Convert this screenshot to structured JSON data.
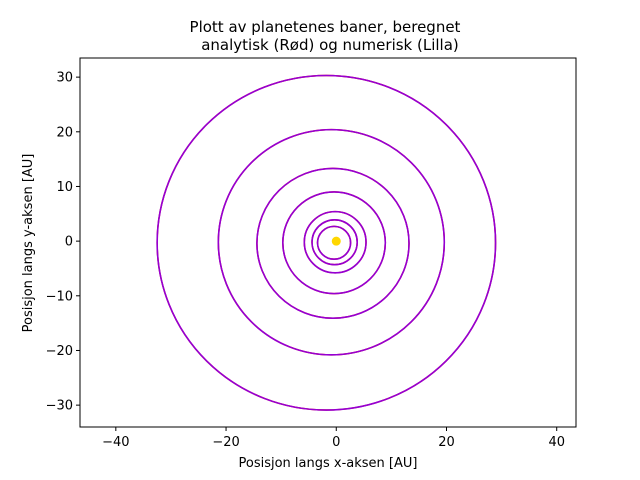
{
  "chart_data": {
    "type": "line",
    "title_lines": [
      "Plott av planetenes baner, beregnet",
      "analytisk (Rød) og numerisk (Lilla)"
    ],
    "xlabel": "Posisjon langs x-aksen [AU]",
    "ylabel": "Posisjon langs y-aksen [AU]",
    "xlim": [
      -46.5,
      43.5
    ],
    "ylim": [
      -34,
      33.5
    ],
    "xticks": [
      -40,
      -20,
      0,
      20,
      40
    ],
    "yticks": [
      -30,
      -20,
      -10,
      0,
      10,
      20,
      30
    ],
    "grid": false,
    "colors": {
      "analytic": "#ff0000",
      "numeric": "#9400d3",
      "sun": "#ffd700"
    },
    "sun": {
      "x": 0,
      "y": 0
    },
    "orbits": [
      {
        "cx": -0.4,
        "cy": -0.3,
        "rx": 3.0,
        "ry": 3.0
      },
      {
        "cx": -0.3,
        "cy": -0.2,
        "rx": 4.1,
        "ry": 4.1
      },
      {
        "cx": -0.2,
        "cy": -0.2,
        "rx": 5.6,
        "ry": 5.6
      },
      {
        "cx": -0.4,
        "cy": -0.3,
        "rx": 9.3,
        "ry": 9.3
      },
      {
        "cx": -0.6,
        "cy": -0.4,
        "rx": 13.8,
        "ry": 13.7
      },
      {
        "cx": -0.9,
        "cy": -0.2,
        "rx": 20.5,
        "ry": 20.6
      },
      {
        "cx": -1.8,
        "cy": -0.3,
        "rx": 30.7,
        "ry": 30.6
      }
    ]
  }
}
